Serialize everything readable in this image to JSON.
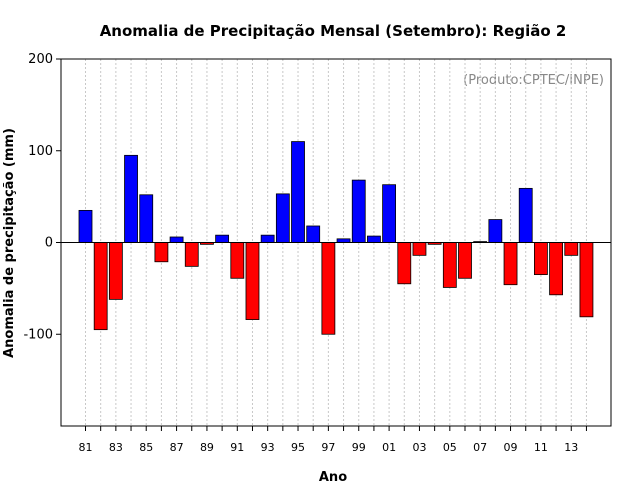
{
  "chart_data": {
    "type": "bar",
    "title": "Anomalia de Precipitação Mensal (Setembro): Região 2",
    "xlabel": "Ano",
    "ylabel": "Anomalia de precipitação (mm)",
    "annotation": "(Produto:CPTEC/INPE)",
    "ylim": [
      -200,
      200
    ],
    "yticks": [
      -100,
      0,
      100,
      200
    ],
    "grid": "vertical-dotted",
    "positive_color": "#0000ff",
    "negative_color": "#ff0000",
    "categories": [
      "81",
      "82",
      "83",
      "84",
      "85",
      "86",
      "87",
      "88",
      "89",
      "90",
      "91",
      "92",
      "93",
      "94",
      "95",
      "96",
      "97",
      "98",
      "99",
      "00",
      "01",
      "02",
      "03",
      "04",
      "05",
      "06",
      "07",
      "08",
      "09",
      "10",
      "11",
      "12",
      "13",
      "14"
    ],
    "xtick_labels": [
      "81",
      "83",
      "85",
      "87",
      "89",
      "91",
      "93",
      "95",
      "97",
      "99",
      "01",
      "03",
      "05",
      "07",
      "09",
      "11",
      "13"
    ],
    "values": [
      35,
      -95,
      -62,
      95,
      52,
      -21,
      6,
      -26,
      -2,
      8,
      -39,
      -84,
      8,
      53,
      110,
      18,
      -100,
      4,
      68,
      7,
      63,
      -45,
      -14,
      -2,
      -49,
      -39,
      1,
      25,
      -46,
      59,
      -35,
      -57,
      -14,
      -81
    ]
  }
}
